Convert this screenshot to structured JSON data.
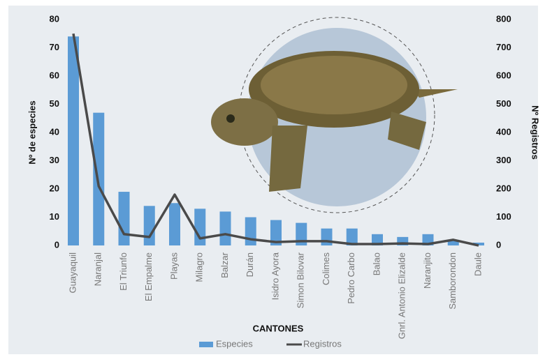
{
  "chart_data": {
    "type": "bar-line",
    "x_label": "CANTONES",
    "y_label": "Nº de especies",
    "y2_label": "Nº Registros",
    "categories": [
      "Guayaquil",
      "Naranjal",
      "El Triunfo",
      "El Empalme",
      "Playas",
      "Milagro",
      "Balzar",
      "Durán",
      "Isidro Ayora",
      "Simon Bilovar",
      "Colimes",
      "Pedro Carbo",
      "Balao",
      "Gnrl. Antonio Elizalde",
      "Naranjito",
      "Samborondon",
      "Daule"
    ],
    "series": [
      {
        "name": "Especies",
        "type": "bar",
        "color": "#5b9bd5",
        "values": [
          74,
          47,
          19,
          14,
          15,
          13,
          12,
          10,
          9,
          8,
          6,
          6,
          4,
          3,
          4,
          2,
          1
        ]
      },
      {
        "name": "Registros",
        "type": "line",
        "axis": "y2",
        "color": "#4a4a4a",
        "values": [
          750,
          210,
          40,
          30,
          180,
          25,
          40,
          22,
          12,
          15,
          15,
          5,
          5,
          7,
          5,
          20,
          0
        ]
      }
    ],
    "ylim": [
      0,
      80
    ],
    "yticks": [
      0,
      10,
      20,
      30,
      40,
      50,
      60,
      70,
      80
    ],
    "y2lim": [
      0,
      800
    ],
    "y2ticks": [
      0,
      100,
      200,
      300,
      400,
      500,
      600,
      700,
      800
    ]
  }
}
